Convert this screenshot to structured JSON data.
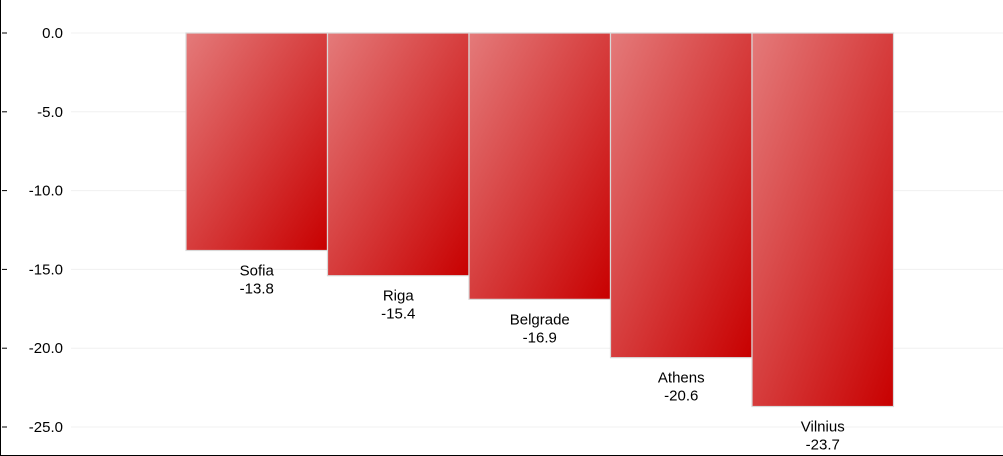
{
  "chart_data": {
    "type": "bar",
    "categories": [
      "Sofia",
      "Riga",
      "Belgrade",
      "Athens",
      "Vilnius"
    ],
    "values": [
      -13.8,
      -15.4,
      -16.9,
      -20.6,
      -23.7
    ],
    "value_labels": [
      "-13.8",
      "-15.4",
      "-16.9",
      "-20.6",
      "-23.7"
    ],
    "title": "",
    "xlabel": "",
    "ylabel": "",
    "ylim": [
      -25,
      0
    ],
    "yticks": [
      0,
      -5,
      -10,
      -15,
      -20,
      -25
    ],
    "ytick_labels": [
      "0.0",
      "-5.0",
      "-10.0",
      "-15.0",
      "-20.0",
      "-25.0"
    ],
    "grid": true,
    "legend": "none",
    "colors": {
      "bar_light": "#e47a7a",
      "bar_dark": "#c80000",
      "bar_edge": "#d9d9d9",
      "grid": "#f0f0f0",
      "axis": "#000000"
    }
  }
}
